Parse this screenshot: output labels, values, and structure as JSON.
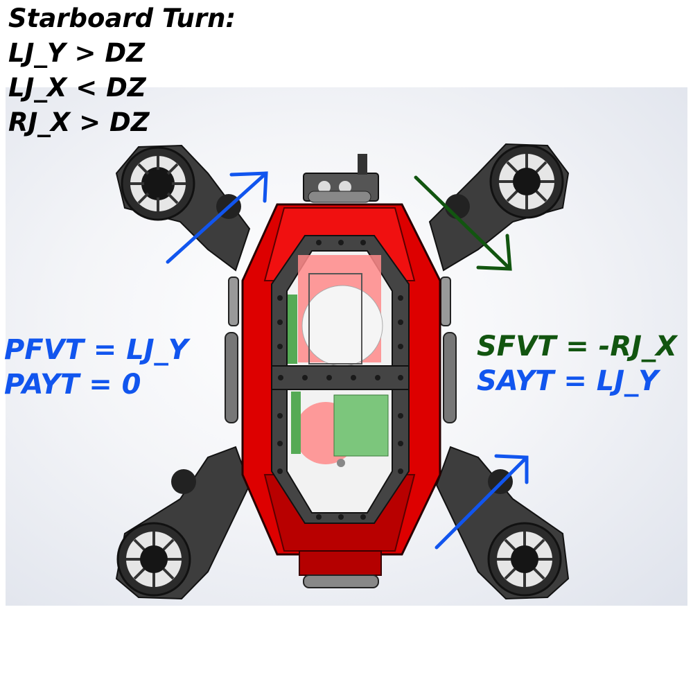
{
  "title": "Starboard Turn:",
  "conditions": [
    "LJ_Y > DZ",
    "LJ_X < DZ",
    "RJ_X > DZ"
  ],
  "port_equations": [
    "PFVT = LJ_Y",
    "PAYT = 0"
  ],
  "starboard_equations": [
    "SFVT = -RJ_X",
    "SAYT = LJ_Y"
  ],
  "colors": {
    "blue": "#1155ee",
    "green": "#125510",
    "hull_red": "#dd0000",
    "frame_gray": "#3a3a3a"
  },
  "arrows": [
    {
      "name": "port-forward-arrow",
      "direction": "up-right",
      "color": "blue"
    },
    {
      "name": "starboard-forward-arrow",
      "direction": "down-right",
      "color": "green"
    },
    {
      "name": "starboard-aft-arrow",
      "direction": "up-right",
      "color": "blue"
    }
  ]
}
